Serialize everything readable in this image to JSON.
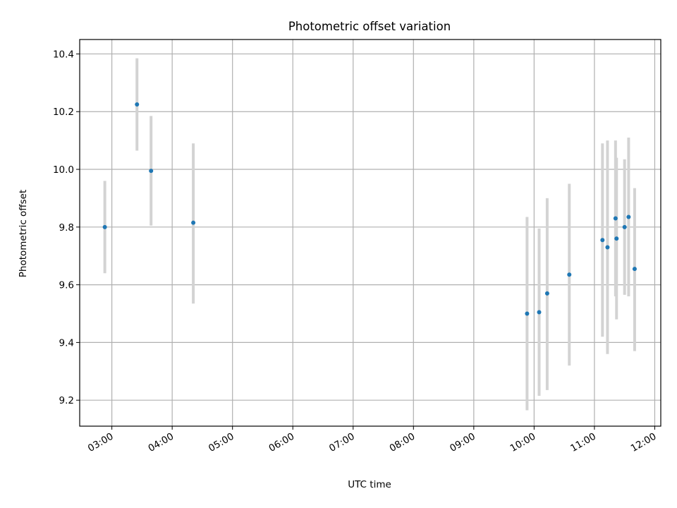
{
  "chart_data": {
    "type": "scatter",
    "title": "Photometric offset variation",
    "xlabel": "UTC time",
    "ylabel": "Photometric offset",
    "x_axis_type": "time",
    "xlim": [
      "02:28",
      "12:06"
    ],
    "ylim": [
      9.11,
      10.45
    ],
    "x_tick_labels": [
      "03:00",
      "04:00",
      "05:00",
      "06:00",
      "07:00",
      "08:00",
      "09:00",
      "10:00",
      "11:00",
      "12:00"
    ],
    "y_tick_labels": [
      "9.2",
      "9.4",
      "9.6",
      "9.8",
      "10.0",
      "10.2",
      "10.4"
    ],
    "y_ticks": [
      9.2,
      9.4,
      9.6,
      9.8,
      10.0,
      10.2,
      10.4
    ],
    "grid": true,
    "errorbar_color": "#d3d3d3",
    "point_color": "#1f77b4",
    "points": [
      {
        "time": "02:53",
        "y": 9.8,
        "ylow": 9.64,
        "yhigh": 9.96
      },
      {
        "time": "03:25",
        "y": 10.225,
        "ylow": 10.065,
        "yhigh": 10.385
      },
      {
        "time": "03:39",
        "y": 9.995,
        "ylow": 9.805,
        "yhigh": 10.185
      },
      {
        "time": "04:21",
        "y": 9.815,
        "ylow": 9.535,
        "yhigh": 10.09
      },
      {
        "time": "09:53",
        "y": 9.5,
        "ylow": 9.165,
        "yhigh": 9.835
      },
      {
        "time": "10:05",
        "y": 9.505,
        "ylow": 9.215,
        "yhigh": 9.795
      },
      {
        "time": "10:13",
        "y": 9.57,
        "ylow": 9.235,
        "yhigh": 9.9
      },
      {
        "time": "10:35",
        "y": 9.635,
        "ylow": 9.32,
        "yhigh": 9.95
      },
      {
        "time": "11:08",
        "y": 9.755,
        "ylow": 9.42,
        "yhigh": 10.09
      },
      {
        "time": "11:13",
        "y": 9.73,
        "ylow": 9.36,
        "yhigh": 10.1
      },
      {
        "time": "11:21",
        "y": 9.83,
        "ylow": 9.56,
        "yhigh": 10.1
      },
      {
        "time": "11:22",
        "y": 9.76,
        "ylow": 9.48,
        "yhigh": 10.04
      },
      {
        "time": "11:30",
        "y": 9.8,
        "ylow": 9.565,
        "yhigh": 10.035
      },
      {
        "time": "11:34",
        "y": 9.835,
        "ylow": 9.56,
        "yhigh": 10.11
      },
      {
        "time": "11:40",
        "y": 9.655,
        "ylow": 9.37,
        "yhigh": 9.935
      }
    ]
  }
}
